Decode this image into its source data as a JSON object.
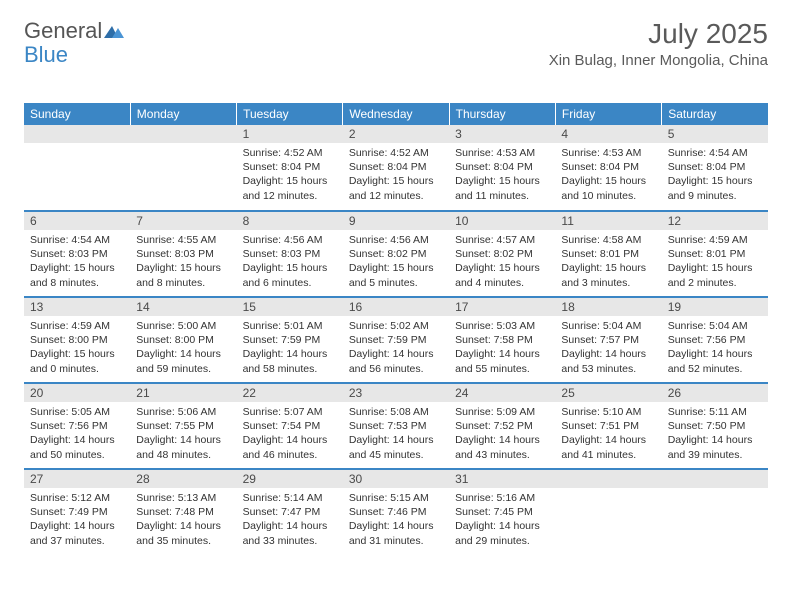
{
  "brand": {
    "word1": "General",
    "word2": "Blue"
  },
  "title": "July 2025",
  "location": "Xin Bulag, Inner Mongolia, China",
  "colors": {
    "brand_blue": "#3b86c5",
    "header_bg": "#3b86c5",
    "header_text": "#ffffff",
    "daynum_bg": "#e7e7e7",
    "text": "#333333",
    "title_text": "#5a5a5a"
  },
  "dayNames": [
    "Sunday",
    "Monday",
    "Tuesday",
    "Wednesday",
    "Thursday",
    "Friday",
    "Saturday"
  ],
  "weeks": [
    [
      null,
      null,
      {
        "n": 1,
        "sr": "4:52 AM",
        "ss": "8:04 PM",
        "dl": "15 hours and 12 minutes."
      },
      {
        "n": 2,
        "sr": "4:52 AM",
        "ss": "8:04 PM",
        "dl": "15 hours and 12 minutes."
      },
      {
        "n": 3,
        "sr": "4:53 AM",
        "ss": "8:04 PM",
        "dl": "15 hours and 11 minutes."
      },
      {
        "n": 4,
        "sr": "4:53 AM",
        "ss": "8:04 PM",
        "dl": "15 hours and 10 minutes."
      },
      {
        "n": 5,
        "sr": "4:54 AM",
        "ss": "8:04 PM",
        "dl": "15 hours and 9 minutes."
      }
    ],
    [
      {
        "n": 6,
        "sr": "4:54 AM",
        "ss": "8:03 PM",
        "dl": "15 hours and 8 minutes."
      },
      {
        "n": 7,
        "sr": "4:55 AM",
        "ss": "8:03 PM",
        "dl": "15 hours and 8 minutes."
      },
      {
        "n": 8,
        "sr": "4:56 AM",
        "ss": "8:03 PM",
        "dl": "15 hours and 6 minutes."
      },
      {
        "n": 9,
        "sr": "4:56 AM",
        "ss": "8:02 PM",
        "dl": "15 hours and 5 minutes."
      },
      {
        "n": 10,
        "sr": "4:57 AM",
        "ss": "8:02 PM",
        "dl": "15 hours and 4 minutes."
      },
      {
        "n": 11,
        "sr": "4:58 AM",
        "ss": "8:01 PM",
        "dl": "15 hours and 3 minutes."
      },
      {
        "n": 12,
        "sr": "4:59 AM",
        "ss": "8:01 PM",
        "dl": "15 hours and 2 minutes."
      }
    ],
    [
      {
        "n": 13,
        "sr": "4:59 AM",
        "ss": "8:00 PM",
        "dl": "15 hours and 0 minutes."
      },
      {
        "n": 14,
        "sr": "5:00 AM",
        "ss": "8:00 PM",
        "dl": "14 hours and 59 minutes."
      },
      {
        "n": 15,
        "sr": "5:01 AM",
        "ss": "7:59 PM",
        "dl": "14 hours and 58 minutes."
      },
      {
        "n": 16,
        "sr": "5:02 AM",
        "ss": "7:59 PM",
        "dl": "14 hours and 56 minutes."
      },
      {
        "n": 17,
        "sr": "5:03 AM",
        "ss": "7:58 PM",
        "dl": "14 hours and 55 minutes."
      },
      {
        "n": 18,
        "sr": "5:04 AM",
        "ss": "7:57 PM",
        "dl": "14 hours and 53 minutes."
      },
      {
        "n": 19,
        "sr": "5:04 AM",
        "ss": "7:56 PM",
        "dl": "14 hours and 52 minutes."
      }
    ],
    [
      {
        "n": 20,
        "sr": "5:05 AM",
        "ss": "7:56 PM",
        "dl": "14 hours and 50 minutes."
      },
      {
        "n": 21,
        "sr": "5:06 AM",
        "ss": "7:55 PM",
        "dl": "14 hours and 48 minutes."
      },
      {
        "n": 22,
        "sr": "5:07 AM",
        "ss": "7:54 PM",
        "dl": "14 hours and 46 minutes."
      },
      {
        "n": 23,
        "sr": "5:08 AM",
        "ss": "7:53 PM",
        "dl": "14 hours and 45 minutes."
      },
      {
        "n": 24,
        "sr": "5:09 AM",
        "ss": "7:52 PM",
        "dl": "14 hours and 43 minutes."
      },
      {
        "n": 25,
        "sr": "5:10 AM",
        "ss": "7:51 PM",
        "dl": "14 hours and 41 minutes."
      },
      {
        "n": 26,
        "sr": "5:11 AM",
        "ss": "7:50 PM",
        "dl": "14 hours and 39 minutes."
      }
    ],
    [
      {
        "n": 27,
        "sr": "5:12 AM",
        "ss": "7:49 PM",
        "dl": "14 hours and 37 minutes."
      },
      {
        "n": 28,
        "sr": "5:13 AM",
        "ss": "7:48 PM",
        "dl": "14 hours and 35 minutes."
      },
      {
        "n": 29,
        "sr": "5:14 AM",
        "ss": "7:47 PM",
        "dl": "14 hours and 33 minutes."
      },
      {
        "n": 30,
        "sr": "5:15 AM",
        "ss": "7:46 PM",
        "dl": "14 hours and 31 minutes."
      },
      {
        "n": 31,
        "sr": "5:16 AM",
        "ss": "7:45 PM",
        "dl": "14 hours and 29 minutes."
      },
      null,
      null
    ]
  ],
  "labels": {
    "sunrise": "Sunrise:",
    "sunset": "Sunset:",
    "daylight": "Daylight:"
  }
}
